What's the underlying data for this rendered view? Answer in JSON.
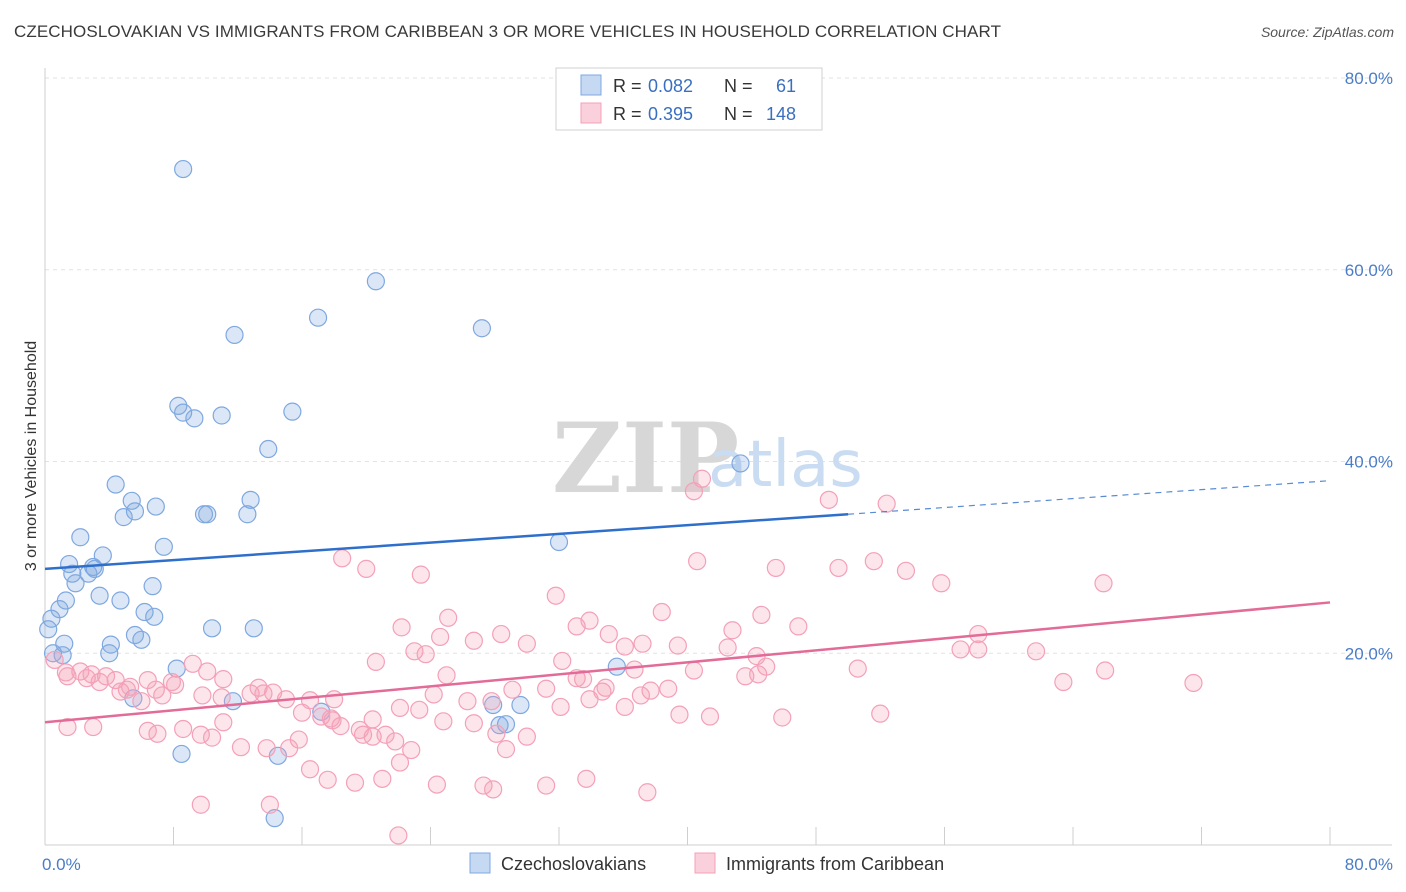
{
  "title": "CZECHOSLOVAKIAN VS IMMIGRANTS FROM CARIBBEAN 3 OR MORE VEHICLES IN HOUSEHOLD CORRELATION CHART",
  "source": "Source: ZipAtlas.com",
  "watermark": {
    "zip": "ZIP",
    "atlas": "atlas"
  },
  "legend": {
    "rows": [
      {
        "r_label": "R =",
        "r_value": "0.082",
        "n_label": "N =",
        "n_value": "61",
        "color": "#7fa8e0"
      },
      {
        "r_label": "R =",
        "r_value": "0.395",
        "n_label": "N =",
        "n_value": "148",
        "color": "#f4a0b8"
      }
    ]
  },
  "bottom_legend": [
    {
      "label": "Czechoslovakians",
      "color": "#7fa8e0"
    },
    {
      "label": "Immigrants from Caribbean",
      "color": "#f4a0b8"
    }
  ],
  "chart_data": {
    "type": "scatter",
    "title": "CZECHOSLOVAKIAN VS IMMIGRANTS FROM CARIBBEAN 3 OR MORE VEHICLES IN HOUSEHOLD CORRELATION CHART",
    "xlabel": "",
    "ylabel": "3 or more Vehicles in Household",
    "xlim": [
      0,
      80
    ],
    "ylim": [
      0,
      80
    ],
    "x_tick_labels": [
      "0.0%",
      "80.0%"
    ],
    "y_tick_labels": [
      "20.0%",
      "40.0%",
      "60.0%",
      "80.0%"
    ],
    "y_ticks": [
      20,
      40,
      60,
      80
    ],
    "grid": true,
    "legend_position": "top-center",
    "series": [
      {
        "name": "Czechoslovakians",
        "color": "#7fa8e0",
        "line_color": "#2f6fcc",
        "trend": {
          "x0": 0,
          "y0": 28.8,
          "x1": 50,
          "y1": 34.5,
          "dashed_to_x": 80,
          "dashed_to_y": 38.0
        },
        "points": [
          [
            8.6,
            70.5
          ],
          [
            20.6,
            58.8
          ],
          [
            17.0,
            55.0
          ],
          [
            27.2,
            53.9
          ],
          [
            11.8,
            53.2
          ],
          [
            8.3,
            45.8
          ],
          [
            8.6,
            45.1
          ],
          [
            15.4,
            45.2
          ],
          [
            9.3,
            44.5
          ],
          [
            11.0,
            44.8
          ],
          [
            13.9,
            41.3
          ],
          [
            43.3,
            39.8
          ],
          [
            4.4,
            37.6
          ],
          [
            5.4,
            35.9
          ],
          [
            12.8,
            36.0
          ],
          [
            6.9,
            35.3
          ],
          [
            5.6,
            34.8
          ],
          [
            4.9,
            34.2
          ],
          [
            9.9,
            34.5
          ],
          [
            10.1,
            34.5
          ],
          [
            12.6,
            34.5
          ],
          [
            32.0,
            31.6
          ],
          [
            7.4,
            31.1
          ],
          [
            2.2,
            32.1
          ],
          [
            3.6,
            30.2
          ],
          [
            1.5,
            29.3
          ],
          [
            3.0,
            29.0
          ],
          [
            2.7,
            28.3
          ],
          [
            1.7,
            28.3
          ],
          [
            1.9,
            27.3
          ],
          [
            6.7,
            27.0
          ],
          [
            3.4,
            26.0
          ],
          [
            4.7,
            25.5
          ],
          [
            1.3,
            25.5
          ],
          [
            0.9,
            24.6
          ],
          [
            6.2,
            24.3
          ],
          [
            6.8,
            23.8
          ],
          [
            0.4,
            23.6
          ],
          [
            13.0,
            22.6
          ],
          [
            10.4,
            22.6
          ],
          [
            5.6,
            21.9
          ],
          [
            6.0,
            21.4
          ],
          [
            4.1,
            20.9
          ],
          [
            4.0,
            20.0
          ],
          [
            1.2,
            21.0
          ],
          [
            0.5,
            20.0
          ],
          [
            1.1,
            19.8
          ],
          [
            35.6,
            18.6
          ],
          [
            8.2,
            18.4
          ],
          [
            5.5,
            15.3
          ],
          [
            11.7,
            15.0
          ],
          [
            29.6,
            14.6
          ],
          [
            17.2,
            13.9
          ],
          [
            28.7,
            12.6
          ],
          [
            28.3,
            12.5
          ],
          [
            8.5,
            9.5
          ],
          [
            14.5,
            9.3
          ],
          [
            14.3,
            2.8
          ],
          [
            27.9,
            14.6
          ],
          [
            3.1,
            28.8
          ],
          [
            0.2,
            22.5
          ]
        ]
      },
      {
        "name": "Immigrants from Caribbean",
        "color": "#f4a0b8",
        "line_color": "#e26b97",
        "trend": {
          "x0": 0,
          "y0": 12.8,
          "x1": 80,
          "y1": 25.3
        },
        "points": [
          [
            40.9,
            38.2
          ],
          [
            40.4,
            36.9
          ],
          [
            48.8,
            36.0
          ],
          [
            52.4,
            35.6
          ],
          [
            18.5,
            29.9
          ],
          [
            40.6,
            29.6
          ],
          [
            45.5,
            28.9
          ],
          [
            49.4,
            28.9
          ],
          [
            51.6,
            29.6
          ],
          [
            23.4,
            28.2
          ],
          [
            53.6,
            28.6
          ],
          [
            55.8,
            27.3
          ],
          [
            65.9,
            27.3
          ],
          [
            31.8,
            26.0
          ],
          [
            38.4,
            24.3
          ],
          [
            44.6,
            24.0
          ],
          [
            25.1,
            23.7
          ],
          [
            22.2,
            22.7
          ],
          [
            33.1,
            22.8
          ],
          [
            46.9,
            22.8
          ],
          [
            37.2,
            21.0
          ],
          [
            58.1,
            22.0
          ],
          [
            24.6,
            21.7
          ],
          [
            28.4,
            22.0
          ],
          [
            35.1,
            22.0
          ],
          [
            26.7,
            21.3
          ],
          [
            20.6,
            19.1
          ],
          [
            23.0,
            20.2
          ],
          [
            23.7,
            19.9
          ],
          [
            32.2,
            19.2
          ],
          [
            39.4,
            20.8
          ],
          [
            36.1,
            20.7
          ],
          [
            42.5,
            20.6
          ],
          [
            44.3,
            19.7
          ],
          [
            57.0,
            20.4
          ],
          [
            61.7,
            20.2
          ],
          [
            66.0,
            18.2
          ],
          [
            63.4,
            17.0
          ],
          [
            71.5,
            16.9
          ],
          [
            50.6,
            18.4
          ],
          [
            44.9,
            18.6
          ],
          [
            36.7,
            18.3
          ],
          [
            44.4,
            17.8
          ],
          [
            40.4,
            18.2
          ],
          [
            25.0,
            17.7
          ],
          [
            24.2,
            15.7
          ],
          [
            34.9,
            16.4
          ],
          [
            37.7,
            16.1
          ],
          [
            33.5,
            17.3
          ],
          [
            33.1,
            17.4
          ],
          [
            31.2,
            16.3
          ],
          [
            29.1,
            16.2
          ],
          [
            27.8,
            15.0
          ],
          [
            26.3,
            15.0
          ],
          [
            38.8,
            16.3
          ],
          [
            34.7,
            16.0
          ],
          [
            22.1,
            14.3
          ],
          [
            23.3,
            14.1
          ],
          [
            18.0,
            15.2
          ],
          [
            16.5,
            15.1
          ],
          [
            13.3,
            16.4
          ],
          [
            12.8,
            15.8
          ],
          [
            11.1,
            17.3
          ],
          [
            10.1,
            18.1
          ],
          [
            9.2,
            18.9
          ],
          [
            7.9,
            17.0
          ],
          [
            6.9,
            16.2
          ],
          [
            6.4,
            17.2
          ],
          [
            5.3,
            16.5
          ],
          [
            4.7,
            16.0
          ],
          [
            4.4,
            17.2
          ],
          [
            3.8,
            17.6
          ],
          [
            2.9,
            17.8
          ],
          [
            2.2,
            18.1
          ],
          [
            1.3,
            18.0
          ],
          [
            0.6,
            19.3
          ],
          [
            3.4,
            17.0
          ],
          [
            2.6,
            17.4
          ],
          [
            1.4,
            17.6
          ],
          [
            5.1,
            16.2
          ],
          [
            6.0,
            15.0
          ],
          [
            7.3,
            15.6
          ],
          [
            8.1,
            16.7
          ],
          [
            9.8,
            15.6
          ],
          [
            11.0,
            15.4
          ],
          [
            13.6,
            15.8
          ],
          [
            14.2,
            15.9
          ],
          [
            15.0,
            15.2
          ],
          [
            16.0,
            13.8
          ],
          [
            17.2,
            13.4
          ],
          [
            17.9,
            13.0
          ],
          [
            19.6,
            12.0
          ],
          [
            20.4,
            13.1
          ],
          [
            21.2,
            11.5
          ],
          [
            22.8,
            9.9
          ],
          [
            24.8,
            12.9
          ],
          [
            26.7,
            12.7
          ],
          [
            28.1,
            11.6
          ],
          [
            28.7,
            10.0
          ],
          [
            30.0,
            11.3
          ],
          [
            32.1,
            14.4
          ],
          [
            33.9,
            15.2
          ],
          [
            36.1,
            14.4
          ],
          [
            37.1,
            15.6
          ],
          [
            39.5,
            13.6
          ],
          [
            41.4,
            13.4
          ],
          [
            45.9,
            13.3
          ],
          [
            43.6,
            17.6
          ],
          [
            52.0,
            13.7
          ],
          [
            8.6,
            12.1
          ],
          [
            7.0,
            11.6
          ],
          [
            6.4,
            11.9
          ],
          [
            9.7,
            11.5
          ],
          [
            10.4,
            11.2
          ],
          [
            12.2,
            10.2
          ],
          [
            11.1,
            12.8
          ],
          [
            13.8,
            10.1
          ],
          [
            15.2,
            10.1
          ],
          [
            15.8,
            11.0
          ],
          [
            17.8,
            13.2
          ],
          [
            18.4,
            12.4
          ],
          [
            19.8,
            11.5
          ],
          [
            20.4,
            11.3
          ],
          [
            21.8,
            10.8
          ],
          [
            16.5,
            7.9
          ],
          [
            17.6,
            6.8
          ],
          [
            19.3,
            6.5
          ],
          [
            21.0,
            6.9
          ],
          [
            22.1,
            8.6
          ],
          [
            24.4,
            6.3
          ],
          [
            27.3,
            6.2
          ],
          [
            27.9,
            5.8
          ],
          [
            31.2,
            6.2
          ],
          [
            33.7,
            6.9
          ],
          [
            37.5,
            5.5
          ],
          [
            9.7,
            4.2
          ],
          [
            14.0,
            4.2
          ],
          [
            22.0,
            1.0
          ],
          [
            3.0,
            12.3
          ],
          [
            1.4,
            12.3
          ],
          [
            20.0,
            28.8
          ],
          [
            33.9,
            23.4
          ],
          [
            42.8,
            22.4
          ],
          [
            30.0,
            21.0
          ],
          [
            58.1,
            20.4
          ]
        ]
      }
    ]
  }
}
